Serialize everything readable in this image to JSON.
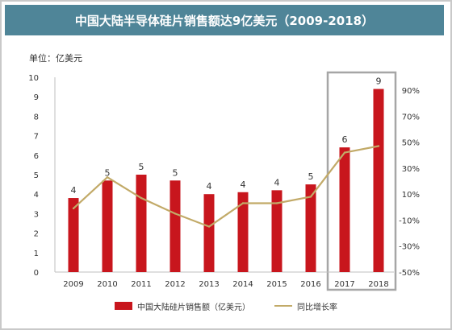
{
  "header": {
    "title": "中国大陆半导体硅片销售额达9亿美元（2009-2018）"
  },
  "unit_label": "单位：亿美元",
  "colors": {
    "banner": "#4f8598",
    "bar": "#c8161d",
    "line": "#c2aa68",
    "highlight_box": "#a6a6a6"
  },
  "chart_data": {
    "type": "bar",
    "categories": [
      "2009",
      "2010",
      "2011",
      "2012",
      "2013",
      "2014",
      "2015",
      "2016",
      "2017",
      "2018"
    ],
    "series": [
      {
        "name": "中国大陆硅片销售额（亿美元）",
        "type": "bar",
        "axis": "left",
        "values": [
          3.8,
          4.7,
          5.0,
          4.7,
          4.0,
          4.1,
          4.2,
          4.5,
          6.4,
          9.4
        ],
        "labels": [
          "4",
          "5",
          "5",
          "5",
          "4",
          "4",
          "4",
          "5",
          "6",
          "9"
        ]
      },
      {
        "name": "同比增长率",
        "type": "line",
        "axis": "right",
        "values": [
          -0.01,
          0.23,
          0.07,
          -0.05,
          -0.15,
          0.03,
          0.03,
          0.08,
          0.42,
          0.47
        ]
      }
    ],
    "y_left": {
      "min": 0,
      "max": 10,
      "ticks": [
        "0",
        "1",
        "2",
        "3",
        "4",
        "5",
        "6",
        "7",
        "8",
        "9",
        "10"
      ]
    },
    "y_right": {
      "min": -0.5,
      "max": 1.0,
      "ticks": [
        "-50%",
        "-30%",
        "-10%",
        "10%",
        "30%",
        "50%",
        "70%",
        "90%"
      ]
    },
    "highlight_categories": [
      "2017",
      "2018"
    ],
    "grid": false,
    "legend": "bottom"
  }
}
